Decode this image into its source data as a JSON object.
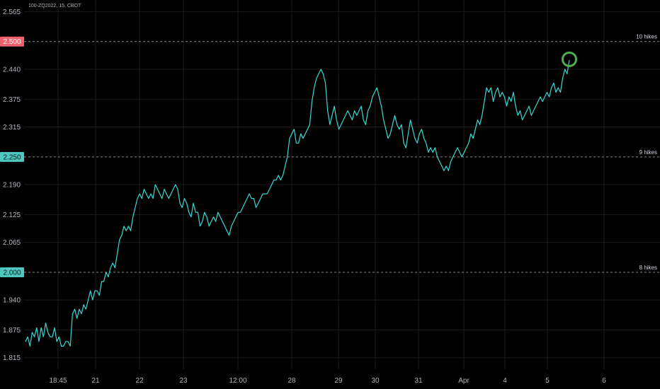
{
  "header": {
    "symbol": "100-ZQ2022, 15, CBOT"
  },
  "colors": {
    "background": "#000000",
    "grid": "#1b1b1f",
    "axis_text": "#b2b5be",
    "line": "#3ad7d2",
    "level_line": "#8a8a8a",
    "badge_red": "#f0616d",
    "badge_teal": "#4fc6be",
    "marker": "#4caf50"
  },
  "chart_data": {
    "type": "line",
    "title": "",
    "xlabel": "",
    "ylabel": "",
    "ylim": [
      1.79,
      2.59
    ],
    "y_ticks": [
      "2.565",
      "2.440",
      "2.375",
      "2.315",
      "2.190",
      "2.125",
      "2.065",
      "1.940",
      "1.875",
      "1.815"
    ],
    "x_ticks": [
      "18:45",
      "21",
      "22",
      "23",
      "12:00",
      "28",
      "29",
      "30",
      "31",
      "Apr",
      "4",
      "5",
      "6"
    ],
    "grid": true,
    "series": [
      {
        "values": [
          1.85,
          1.86,
          1.84,
          1.87,
          1.86,
          1.88,
          1.85,
          1.88,
          1.86,
          1.89,
          1.87,
          1.86,
          1.86,
          1.88,
          1.85,
          1.86,
          1.84,
          1.84,
          1.85,
          1.85,
          1.84,
          1.91,
          1.92,
          1.9,
          1.92,
          1.91,
          1.93,
          1.92,
          1.94,
          1.96,
          1.94,
          1.96,
          1.96,
          1.95,
          1.98,
          1.98,
          2.0,
          1.99,
          2.01,
          2.02,
          2.01,
          2.04,
          2.07,
          2.08,
          2.1,
          2.09,
          2.1,
          2.09,
          2.12,
          2.14,
          2.16,
          2.17,
          2.16,
          2.18,
          2.17,
          2.16,
          2.17,
          2.16,
          2.19,
          2.18,
          2.17,
          2.16,
          2.18,
          2.17,
          2.16,
          2.17,
          2.18,
          2.19,
          2.18,
          2.15,
          2.14,
          2.16,
          2.15,
          2.13,
          2.12,
          2.15,
          2.13,
          2.13,
          2.1,
          2.11,
          2.13,
          2.12,
          2.1,
          2.11,
          2.12,
          2.11,
          2.13,
          2.12,
          2.11,
          2.1,
          2.09,
          2.08,
          2.1,
          2.11,
          2.12,
          2.13,
          2.13,
          2.14,
          2.15,
          2.16,
          2.17,
          2.16,
          2.16,
          2.14,
          2.15,
          2.16,
          2.17,
          2.17,
          2.17,
          2.18,
          2.19,
          2.2,
          2.2,
          2.21,
          2.2,
          2.21,
          2.23,
          2.25,
          2.29,
          2.3,
          2.31,
          2.28,
          2.28,
          2.3,
          2.29,
          2.3,
          2.31,
          2.32,
          2.37,
          2.4,
          2.42,
          2.43,
          2.44,
          2.43,
          2.41,
          2.35,
          2.32,
          2.34,
          2.36,
          2.33,
          2.31,
          2.32,
          2.33,
          2.34,
          2.35,
          2.34,
          2.33,
          2.35,
          2.34,
          2.35,
          2.36,
          2.33,
          2.32,
          2.35,
          2.36,
          2.38,
          2.39,
          2.4,
          2.38,
          2.36,
          2.33,
          2.31,
          2.29,
          2.3,
          2.32,
          2.34,
          2.32,
          2.31,
          2.32,
          2.28,
          2.27,
          2.3,
          2.33,
          2.31,
          2.29,
          2.28,
          2.3,
          2.31,
          2.29,
          2.28,
          2.26,
          2.27,
          2.26,
          2.27,
          2.25,
          2.24,
          2.23,
          2.22,
          2.23,
          2.22,
          2.24,
          2.25,
          2.26,
          2.27,
          2.26,
          2.25,
          2.26,
          2.27,
          2.28,
          2.3,
          2.29,
          2.31,
          2.33,
          2.32,
          2.34,
          2.37,
          2.4,
          2.39,
          2.4,
          2.37,
          2.39,
          2.4,
          2.38,
          2.39,
          2.38,
          2.36,
          2.38,
          2.37,
          2.39,
          2.36,
          2.34,
          2.35,
          2.33,
          2.34,
          2.35,
          2.36,
          2.34,
          2.35,
          2.36,
          2.37,
          2.38,
          2.37,
          2.38,
          2.39,
          2.38,
          2.4,
          2.41,
          2.39,
          2.4,
          2.39,
          2.42,
          2.44,
          2.43,
          2.46
        ]
      }
    ],
    "levels": [
      {
        "value": 2.5,
        "badge": "2.500",
        "label": "10 hikes",
        "badge_color": "red"
      },
      {
        "value": 2.25,
        "badge": "2.250",
        "label": "9 hikes",
        "badge_color": "teal"
      },
      {
        "value": 2.0,
        "badge": "2.000",
        "label": "8 hikes",
        "badge_color": "teal"
      }
    ],
    "annotations": [
      {
        "type": "circle",
        "note": "marker around latest high"
      }
    ]
  }
}
